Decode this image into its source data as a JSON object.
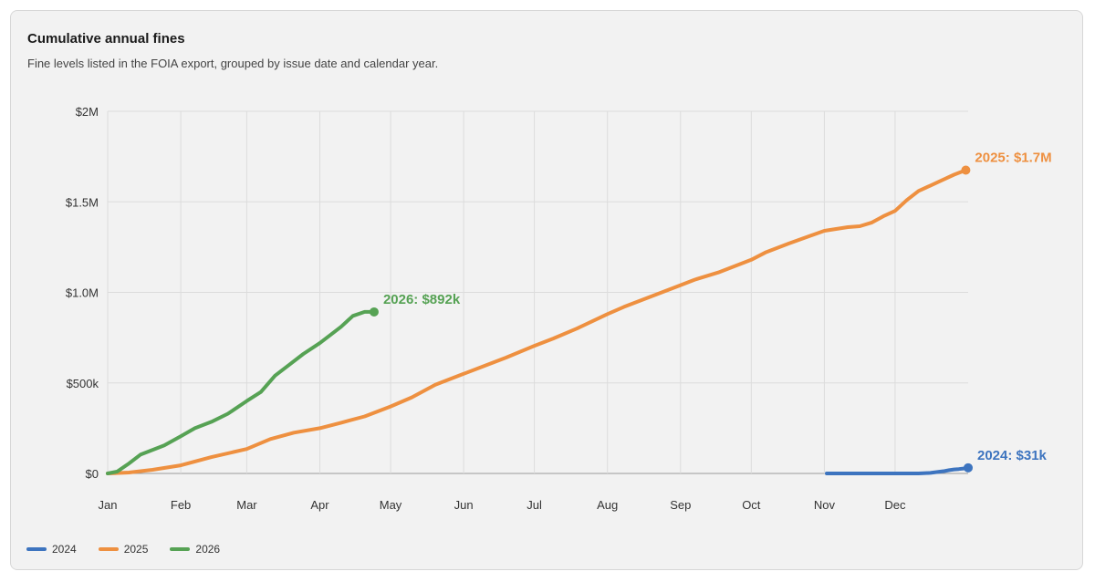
{
  "chart_data": {
    "type": "line",
    "title": "Cumulative annual fines",
    "subtitle": "Fine levels listed in the FOIA export, grouped by issue date and calendar year.",
    "x_unit": "day of year",
    "xlim": [
      1,
      366
    ],
    "ylim": [
      0,
      2000000
    ],
    "y_ticks": [
      {
        "value": 0,
        "label": "$0"
      },
      {
        "value": 500000,
        "label": "$500k"
      },
      {
        "value": 1000000,
        "label": "$1.0M"
      },
      {
        "value": 1500000,
        "label": "$1.5M"
      },
      {
        "value": 2000000,
        "label": "$2M"
      }
    ],
    "x_ticks": [
      {
        "value": 1,
        "label": "Jan"
      },
      {
        "value": 32,
        "label": "Feb"
      },
      {
        "value": 60,
        "label": "Mar"
      },
      {
        "value": 91,
        "label": "Apr"
      },
      {
        "value": 121,
        "label": "May"
      },
      {
        "value": 152,
        "label": "Jun"
      },
      {
        "value": 182,
        "label": "Jul"
      },
      {
        "value": 213,
        "label": "Aug"
      },
      {
        "value": 244,
        "label": "Sep"
      },
      {
        "value": 274,
        "label": "Oct"
      },
      {
        "value": 305,
        "label": "Nov"
      },
      {
        "value": 335,
        "label": "Dec"
      }
    ],
    "grid": true,
    "legend_position": "bottom-left",
    "series": [
      {
        "name": "2024",
        "color": "#3d74bf",
        "end_label": "2024: $31k",
        "x": [
          306,
          320,
          335,
          345,
          350,
          353,
          356,
          358,
          360,
          362,
          364,
          366
        ],
        "y": [
          0,
          0,
          0,
          0,
          3000,
          8000,
          13000,
          18000,
          22000,
          24000,
          27000,
          31000
        ]
      },
      {
        "name": "2025",
        "color": "#ee9040",
        "end_label": "2025: $1.7M",
        "x": [
          1,
          10,
          20,
          32,
          45,
          60,
          70,
          80,
          91,
          100,
          110,
          121,
          130,
          140,
          152,
          160,
          170,
          182,
          190,
          200,
          213,
          220,
          230,
          244,
          250,
          260,
          274,
          280,
          290,
          305,
          315,
          320,
          325,
          330,
          335,
          340,
          345,
          350,
          355,
          360,
          365
        ],
        "y": [
          0,
          5000,
          20000,
          45000,
          90000,
          135000,
          190000,
          225000,
          250000,
          280000,
          315000,
          370000,
          420000,
          490000,
          550000,
          590000,
          640000,
          705000,
          745000,
          800000,
          880000,
          920000,
          970000,
          1040000,
          1070000,
          1110000,
          1180000,
          1220000,
          1270000,
          1340000,
          1360000,
          1365000,
          1385000,
          1420000,
          1450000,
          1510000,
          1560000,
          1590000,
          1620000,
          1650000,
          1675000
        ]
      },
      {
        "name": "2026",
        "color": "#56a254",
        "end_label": "2026: $892k",
        "x": [
          1,
          5,
          10,
          15,
          20,
          25,
          32,
          38,
          45,
          52,
          60,
          66,
          72,
          78,
          84,
          91,
          96,
          100,
          105,
          110,
          114
        ],
        "y": [
          0,
          10000,
          55000,
          105000,
          130000,
          155000,
          205000,
          250000,
          285000,
          330000,
          400000,
          450000,
          540000,
          600000,
          660000,
          720000,
          770000,
          810000,
          870000,
          892000,
          892000
        ]
      }
    ]
  }
}
